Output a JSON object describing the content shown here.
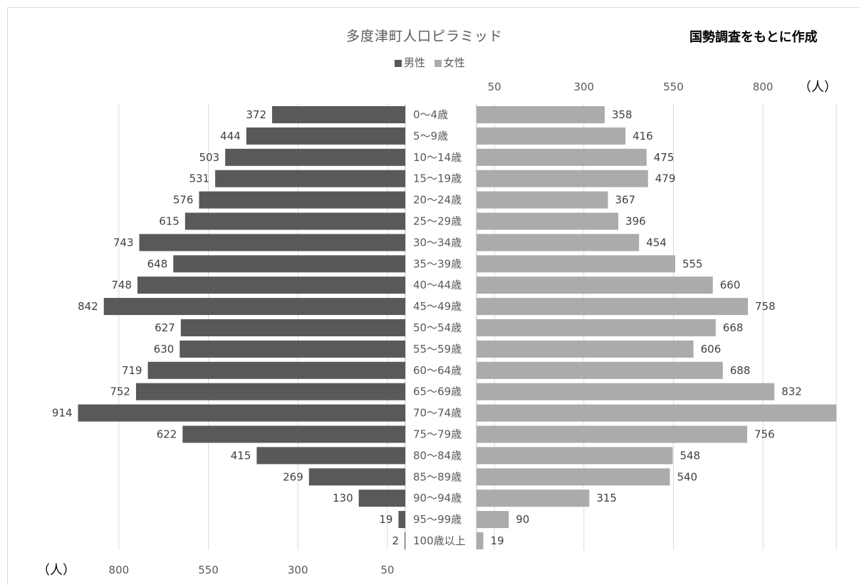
{
  "title": "多度津町人口ピラミッド",
  "source_note": "国勢調査をもとに作成",
  "legend": [
    {
      "name": "男性",
      "color": "#595959"
    },
    {
      "name": "女性",
      "color": "#ababab"
    }
  ],
  "chart_data": {
    "type": "bar",
    "orientation": "horizontal-population-pyramid",
    "categories": [
      "0～4歳",
      "5～9歳",
      "10～14歳",
      "15～19歳",
      "20～24歳",
      "25～29歳",
      "30～34歳",
      "35～39歳",
      "40～44歳",
      "45～49歳",
      "50～54歳",
      "55～59歳",
      "60～64歳",
      "65～69歳",
      "70～74歳",
      "75～79歳",
      "80～84歳",
      "85～89歳",
      "90～94歳",
      "95～99歳",
      "100歳以上"
    ],
    "series": [
      {
        "name": "男性",
        "color": "#595959",
        "values": [
          372,
          444,
          503,
          531,
          576,
          615,
          743,
          648,
          748,
          842,
          627,
          630,
          719,
          752,
          914,
          622,
          415,
          269,
          130,
          19,
          2
        ]
      },
      {
        "name": "女性",
        "color": "#ababab",
        "values": [
          358,
          416,
          475,
          479,
          367,
          396,
          454,
          555,
          660,
          758,
          668,
          606,
          688,
          832,
          1005,
          756,
          548,
          540,
          315,
          90,
          19
        ]
      }
    ],
    "data_labels_shown": [
      "372",
      "444",
      "503",
      "531",
      "576",
      "615",
      "743",
      "648",
      "748",
      "842",
      "627",
      "630",
      "719",
      "752",
      "914",
      "622",
      "415",
      "269",
      "130",
      "19",
      "2",
      "358",
      "416",
      "475",
      "479",
      "367",
      "396",
      "454",
      "555",
      "660",
      "758",
      "668",
      "606",
      "688",
      "832",
      "756",
      "548",
      "540",
      "315",
      "90",
      "19"
    ],
    "male_axis": {
      "ticks": [
        800,
        550,
        300,
        50
      ],
      "unit_label": "（人）",
      "range": [
        0,
        1050
      ]
    },
    "female_axis": {
      "ticks": [
        50,
        300,
        550,
        800
      ],
      "unit_label": "（人）",
      "range": [
        0,
        1050
      ]
    },
    "grid": true,
    "legend_position": "top-center"
  }
}
